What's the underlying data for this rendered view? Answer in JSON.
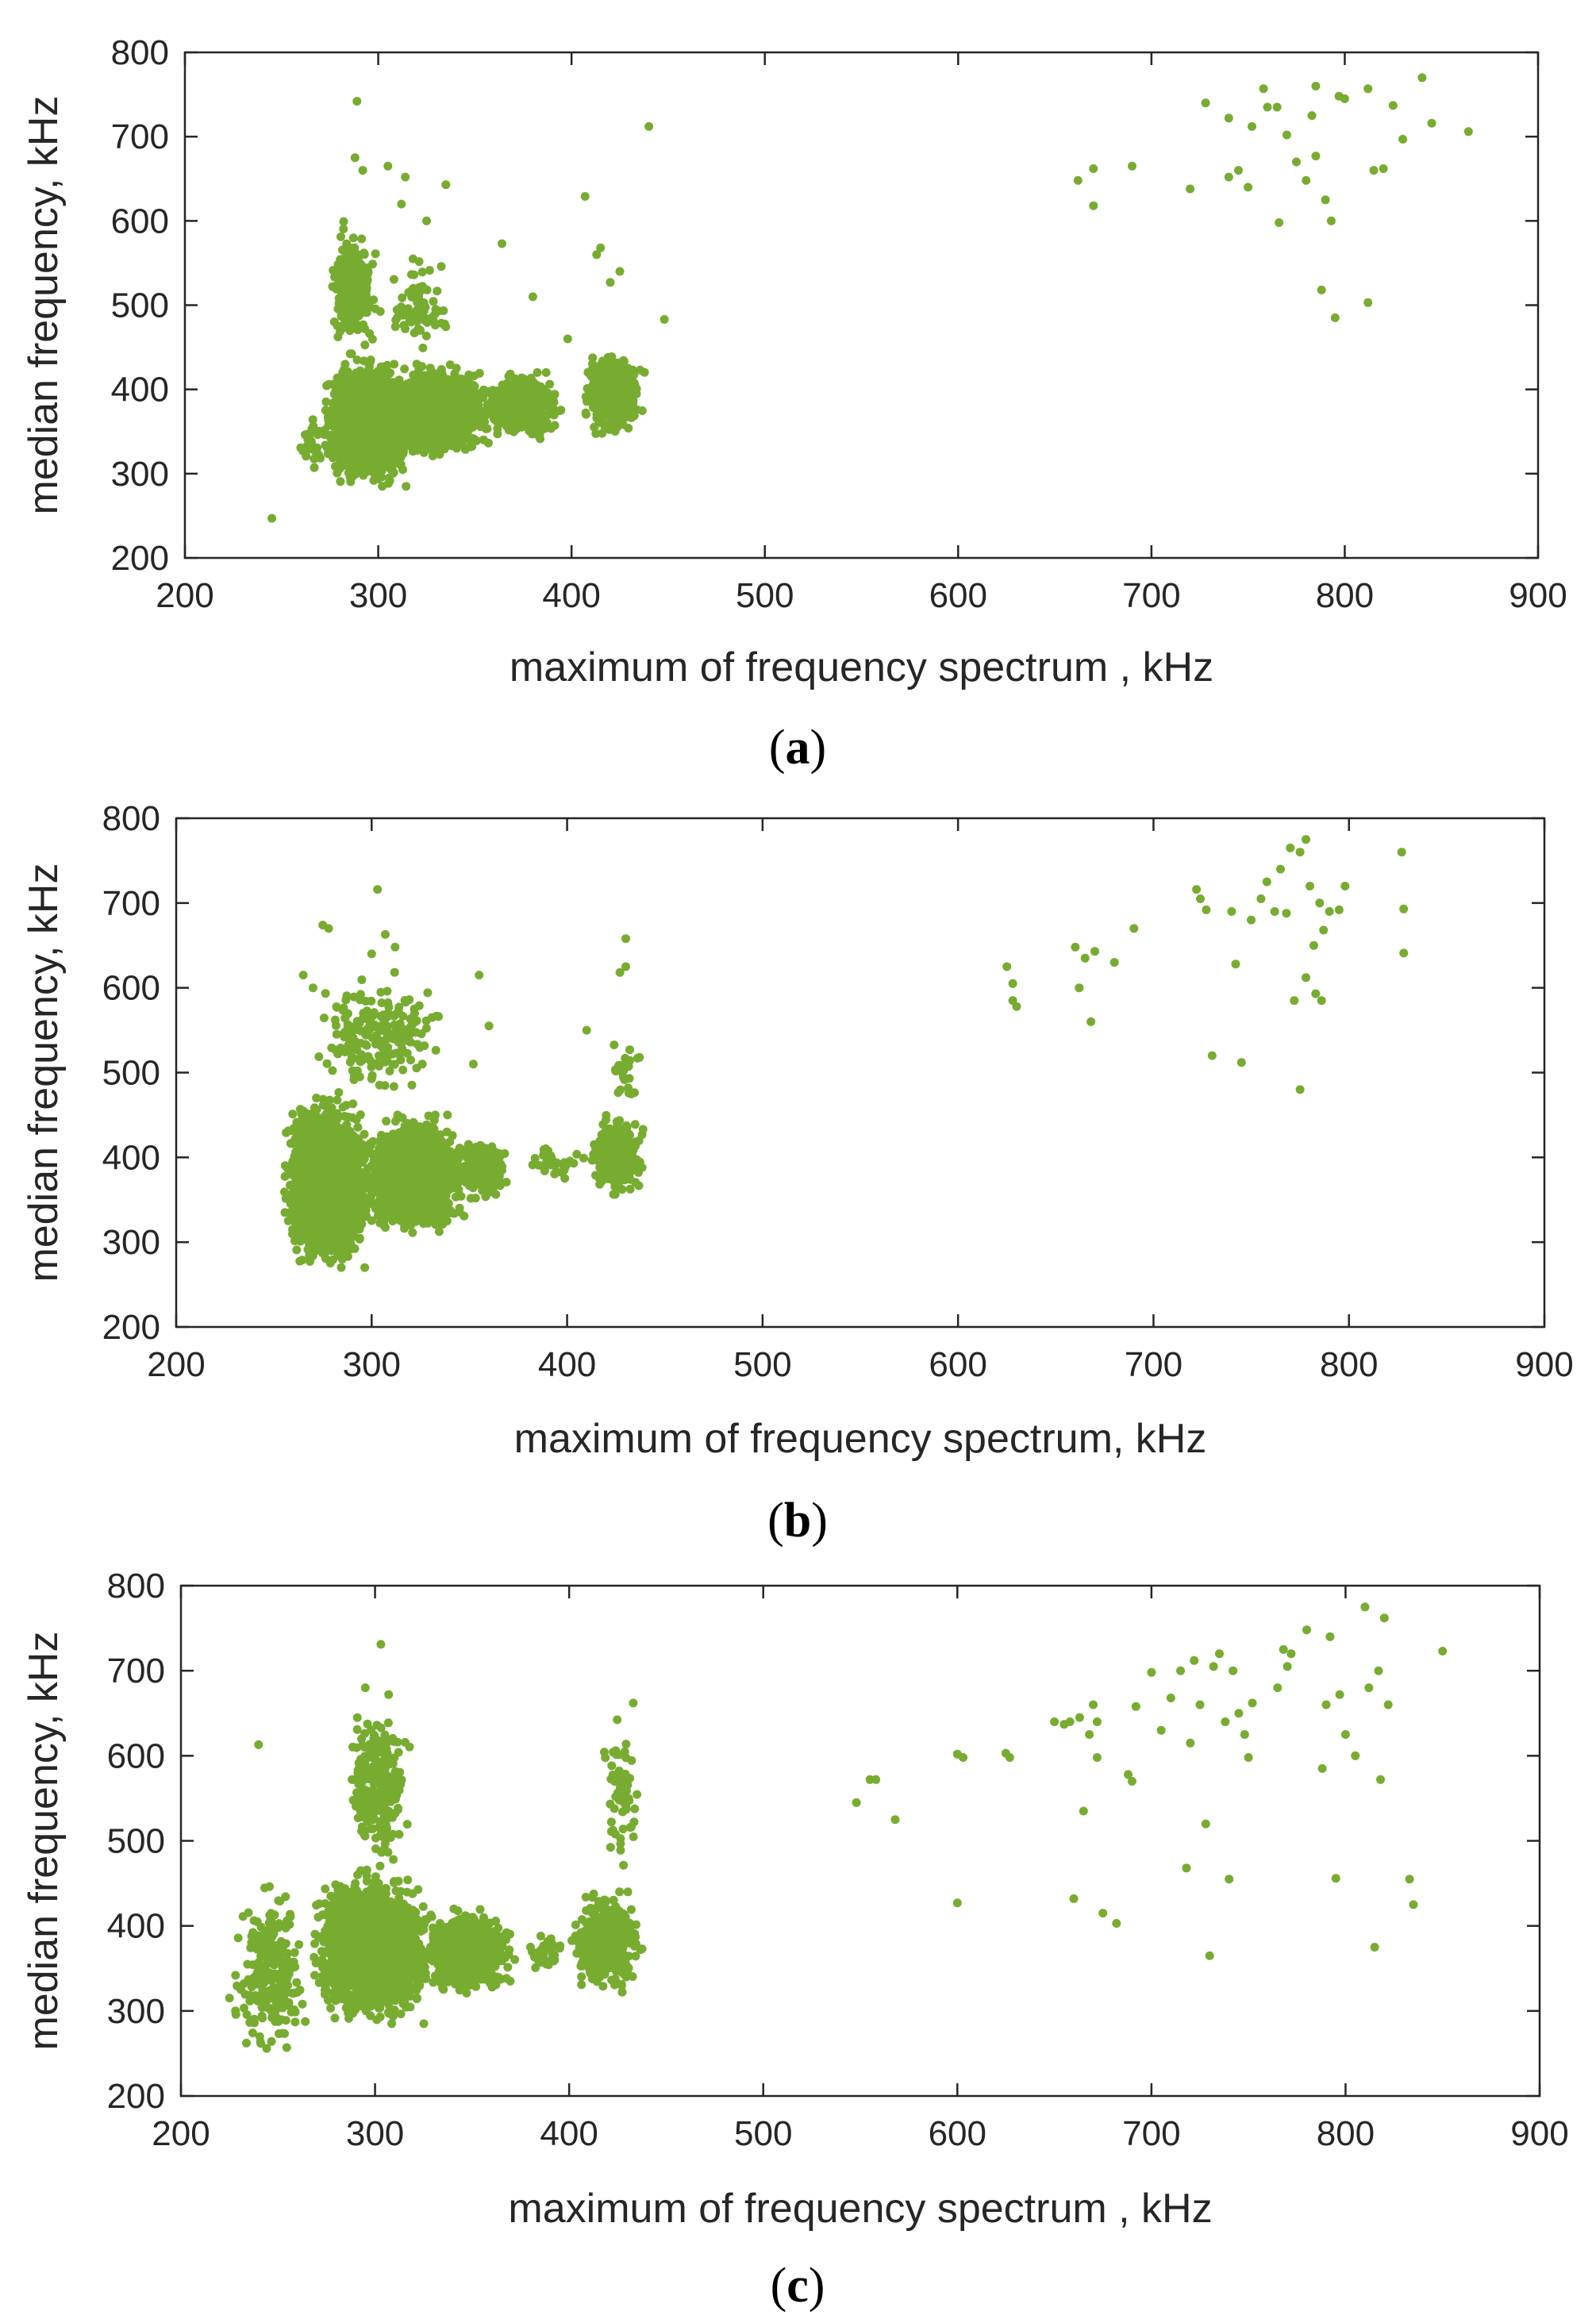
{
  "colors": {
    "marker": "#77AC30",
    "axis": "#262626",
    "background": "#ffffff"
  },
  "chart_data": [
    {
      "type": "scatter",
      "panel": "a",
      "caption": [
        "(",
        "a",
        ")"
      ],
      "xlabel": "maximum of frequency spectrum , kHz",
      "ylabel": "median frequency, kHz",
      "xlim": [
        200,
        900
      ],
      "ylim": [
        200,
        800
      ],
      "xticks": [
        "200",
        "300",
        "400",
        "500",
        "600",
        "700",
        "800",
        "900"
      ],
      "yticks": [
        "200",
        "300",
        "400",
        "500",
        "600",
        "700",
        "800"
      ],
      "grid": false,
      "clusters": [
        {
          "n": 2600,
          "xmin": 272,
          "xmax": 318,
          "ymin": 285,
          "ymax": 435
        },
        {
          "n": 1600,
          "xmin": 300,
          "xmax": 360,
          "ymin": 320,
          "ymax": 430
        },
        {
          "n": 500,
          "xmin": 355,
          "xmax": 395,
          "ymin": 340,
          "ymax": 420
        },
        {
          "n": 450,
          "xmin": 405,
          "xmax": 438,
          "ymin": 345,
          "ymax": 445
        },
        {
          "n": 250,
          "xmin": 275,
          "xmax": 300,
          "ymin": 440,
          "ymax": 600
        },
        {
          "n": 70,
          "xmin": 300,
          "xmax": 340,
          "ymin": 440,
          "ymax": 560
        },
        {
          "n": 30,
          "xmin": 258,
          "xmax": 275,
          "ymin": 300,
          "ymax": 370
        }
      ],
      "points": [
        [
          245,
          247
        ],
        [
          289,
          742
        ],
        [
          440,
          712
        ],
        [
          288,
          675
        ],
        [
          292,
          660
        ],
        [
          305,
          665
        ],
        [
          335,
          643
        ],
        [
          314,
          652
        ],
        [
          407,
          629
        ],
        [
          364,
          573
        ],
        [
          415,
          568
        ],
        [
          380,
          510
        ],
        [
          448,
          483
        ],
        [
          420,
          527
        ],
        [
          425,
          540
        ],
        [
          413,
          560
        ],
        [
          398,
          460
        ],
        [
          312,
          620
        ],
        [
          325,
          600
        ],
        [
          318,
          555
        ],
        [
          662,
          648
        ],
        [
          670,
          662
        ],
        [
          670,
          618
        ],
        [
          690,
          665
        ],
        [
          720,
          638
        ],
        [
          728,
          740
        ],
        [
          740,
          722
        ],
        [
          745,
          660
        ],
        [
          752,
          712
        ],
        [
          758,
          757
        ],
        [
          760,
          735
        ],
        [
          765,
          735
        ],
        [
          770,
          702
        ],
        [
          775,
          670
        ],
        [
          780,
          648
        ],
        [
          783,
          725
        ],
        [
          785,
          760
        ],
        [
          785,
          677
        ],
        [
          790,
          625
        ],
        [
          793,
          600
        ],
        [
          797,
          748
        ],
        [
          800,
          745
        ],
        [
          812,
          757
        ],
        [
          815,
          660
        ],
        [
          820,
          662
        ],
        [
          825,
          737
        ],
        [
          830,
          697
        ],
        [
          840,
          770
        ],
        [
          845,
          716
        ],
        [
          864,
          706
        ],
        [
          788,
          518
        ],
        [
          795,
          485
        ],
        [
          812,
          503
        ],
        [
          740,
          652
        ],
        [
          750,
          640
        ],
        [
          766,
          598
        ]
      ]
    },
    {
      "type": "scatter",
      "panel": "b",
      "caption": [
        "(",
        "b",
        ")"
      ],
      "xlabel": "maximum of frequency spectrum, kHz",
      "ylabel": "median frequency, kHz",
      "xlim": [
        200,
        900
      ],
      "ylim": [
        200,
        800
      ],
      "xticks": [
        "200",
        "300",
        "400",
        "500",
        "600",
        "700",
        "800",
        "900"
      ],
      "yticks": [
        "200",
        "300",
        "400",
        "500",
        "600",
        "700",
        "800"
      ],
      "grid": false,
      "clusters": [
        {
          "n": 2800,
          "xmin": 255,
          "xmax": 300,
          "ymin": 270,
          "ymax": 470
        },
        {
          "n": 1800,
          "xmin": 295,
          "xmax": 350,
          "ymin": 310,
          "ymax": 450
        },
        {
          "n": 300,
          "xmin": 345,
          "xmax": 370,
          "ymin": 350,
          "ymax": 420
        },
        {
          "n": 350,
          "xmin": 412,
          "xmax": 440,
          "ymin": 355,
          "ymax": 450
        },
        {
          "n": 200,
          "xmin": 268,
          "xmax": 340,
          "ymin": 470,
          "ymax": 620
        },
        {
          "n": 40,
          "xmin": 375,
          "xmax": 410,
          "ymin": 370,
          "ymax": 420
        },
        {
          "n": 25,
          "xmin": 420,
          "xmax": 440,
          "ymin": 460,
          "ymax": 540
        }
      ],
      "points": [
        [
          303,
          716
        ],
        [
          275,
          674
        ],
        [
          278,
          670
        ],
        [
          307,
          663
        ],
        [
          312,
          648
        ],
        [
          300,
          640
        ],
        [
          355,
          615
        ],
        [
          430,
          658
        ],
        [
          430,
          625
        ],
        [
          427,
          618
        ],
        [
          410,
          550
        ],
        [
          437,
          518
        ],
        [
          360,
          555
        ],
        [
          352,
          510
        ],
        [
          265,
          615
        ],
        [
          270,
          600
        ],
        [
          625,
          625
        ],
        [
          628,
          605
        ],
        [
          628,
          585
        ],
        [
          630,
          578
        ],
        [
          660,
          648
        ],
        [
          662,
          600
        ],
        [
          665,
          635
        ],
        [
          668,
          560
        ],
        [
          670,
          643
        ],
        [
          680,
          630
        ],
        [
          690,
          670
        ],
        [
          722,
          716
        ],
        [
          724,
          705
        ],
        [
          727,
          692
        ],
        [
          730,
          520
        ],
        [
          740,
          690
        ],
        [
          742,
          628
        ],
        [
          745,
          512
        ],
        [
          750,
          680
        ],
        [
          755,
          705
        ],
        [
          758,
          725
        ],
        [
          762,
          690
        ],
        [
          765,
          740
        ],
        [
          768,
          688
        ],
        [
          770,
          765
        ],
        [
          772,
          585
        ],
        [
          775,
          760
        ],
        [
          775,
          480
        ],
        [
          778,
          775
        ],
        [
          778,
          612
        ],
        [
          780,
          720
        ],
        [
          782,
          650
        ],
        [
          783,
          593
        ],
        [
          785,
          700
        ],
        [
          786,
          585
        ],
        [
          787,
          668
        ],
        [
          790,
          690
        ],
        [
          795,
          692
        ],
        [
          798,
          720
        ],
        [
          827,
          760
        ],
        [
          828,
          693
        ],
        [
          828,
          641
        ]
      ]
    },
    {
      "type": "scatter",
      "panel": "c",
      "caption": [
        "(",
        "c",
        ")"
      ],
      "xlabel": "maximum of frequency spectrum , kHz",
      "ylabel": "median frequency, kHz",
      "xlim": [
        200,
        900
      ],
      "ylim": [
        200,
        800
      ],
      "xticks": [
        "200",
        "300",
        "400",
        "500",
        "600",
        "700",
        "800",
        "900"
      ],
      "yticks": [
        "200",
        "300",
        "400",
        "500",
        "600",
        "700",
        "800"
      ],
      "grid": false,
      "clusters": [
        {
          "n": 2600,
          "xmin": 268,
          "xmax": 330,
          "ymin": 285,
          "ymax": 460
        },
        {
          "n": 1000,
          "xmin": 325,
          "xmax": 372,
          "ymin": 320,
          "ymax": 420
        },
        {
          "n": 450,
          "xmin": 400,
          "xmax": 438,
          "ymin": 320,
          "ymax": 440
        },
        {
          "n": 250,
          "xmin": 225,
          "xmax": 268,
          "ymin": 240,
          "ymax": 460
        },
        {
          "n": 250,
          "xmin": 285,
          "xmax": 318,
          "ymin": 460,
          "ymax": 660
        },
        {
          "n": 60,
          "xmin": 415,
          "xmax": 438,
          "ymin": 450,
          "ymax": 660
        },
        {
          "n": 35,
          "xmin": 378,
          "xmax": 400,
          "ymin": 340,
          "ymax": 400
        }
      ],
      "points": [
        [
          303,
          731
        ],
        [
          240,
          613
        ],
        [
          295,
          680
        ],
        [
          307,
          672
        ],
        [
          433,
          662
        ],
        [
          548,
          545
        ],
        [
          555,
          572
        ],
        [
          558,
          572
        ],
        [
          568,
          525
        ],
        [
          600,
          427
        ],
        [
          600,
          602
        ],
        [
          603,
          598
        ],
        [
          625,
          603
        ],
        [
          627,
          598
        ],
        [
          650,
          640
        ],
        [
          655,
          637
        ],
        [
          658,
          640
        ],
        [
          660,
          432
        ],
        [
          663,
          645
        ],
        [
          665,
          535
        ],
        [
          668,
          625
        ],
        [
          670,
          660
        ],
        [
          672,
          640
        ],
        [
          672,
          598
        ],
        [
          675,
          415
        ],
        [
          682,
          403
        ],
        [
          688,
          578
        ],
        [
          690,
          570
        ],
        [
          692,
          658
        ],
        [
          700,
          698
        ],
        [
          705,
          630
        ],
        [
          710,
          668
        ],
        [
          715,
          700
        ],
        [
          718,
          468
        ],
        [
          720,
          615
        ],
        [
          722,
          712
        ],
        [
          725,
          660
        ],
        [
          728,
          520
        ],
        [
          730,
          365
        ],
        [
          732,
          705
        ],
        [
          735,
          720
        ],
        [
          738,
          640
        ],
        [
          740,
          455
        ],
        [
          742,
          700
        ],
        [
          745,
          650
        ],
        [
          748,
          625
        ],
        [
          750,
          598
        ],
        [
          752,
          662
        ],
        [
          765,
          680
        ],
        [
          768,
          725
        ],
        [
          770,
          705
        ],
        [
          772,
          720
        ],
        [
          780,
          748
        ],
        [
          788,
          585
        ],
        [
          790,
          660
        ],
        [
          792,
          740
        ],
        [
          795,
          456
        ],
        [
          797,
          672
        ],
        [
          800,
          625
        ],
        [
          805,
          600
        ],
        [
          810,
          775
        ],
        [
          812,
          680
        ],
        [
          815,
          375
        ],
        [
          817,
          700
        ],
        [
          818,
          572
        ],
        [
          820,
          762
        ],
        [
          822,
          660
        ],
        [
          833,
          455
        ],
        [
          835,
          425
        ],
        [
          850,
          723
        ]
      ]
    }
  ]
}
